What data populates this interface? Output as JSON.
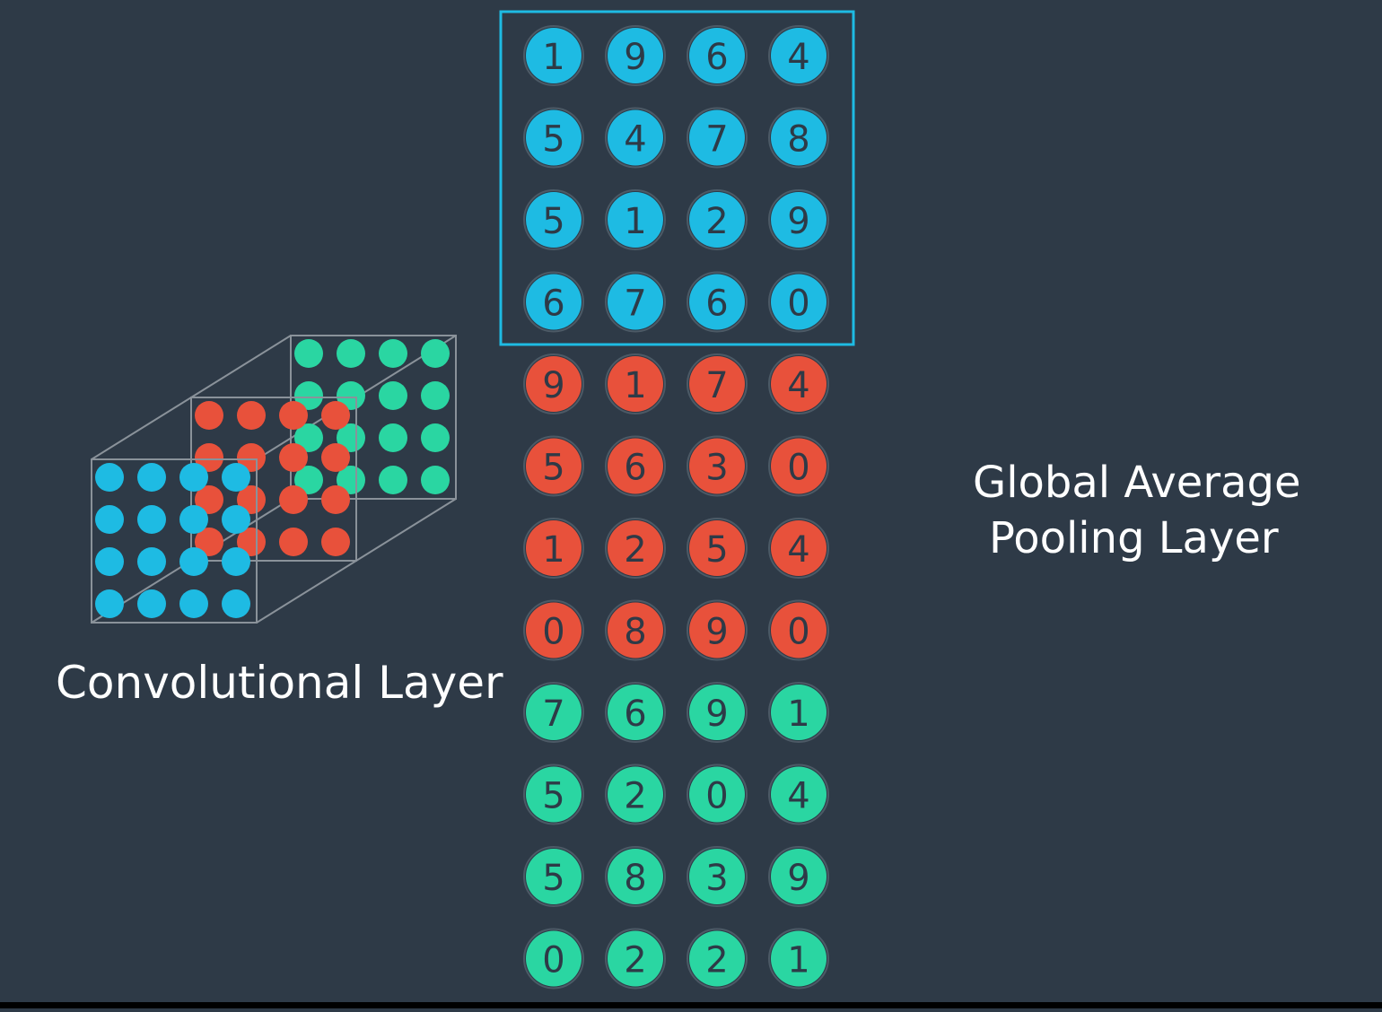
{
  "labels": {
    "conv_layer": "Convolutional Layer",
    "gap_line1": "Global Average",
    "gap_line2": "Pooling Layer"
  },
  "colors": {
    "background": "#2e3a47",
    "blue": "#1ebbe3",
    "red": "#e8513b",
    "green": "#2ad6a2",
    "digit_text": "#2e3a47",
    "highlight_box": "#1ebbe3",
    "cube_edge": "#8a929a"
  },
  "feature_maps": [
    {
      "name": "blue",
      "values": [
        [
          1,
          9,
          6,
          4
        ],
        [
          5,
          4,
          7,
          8
        ],
        [
          5,
          1,
          2,
          9
        ],
        [
          6,
          7,
          6,
          0
        ]
      ]
    },
    {
      "name": "red",
      "values": [
        [
          9,
          1,
          7,
          4
        ],
        [
          5,
          6,
          3,
          0
        ],
        [
          1,
          2,
          5,
          4
        ],
        [
          0,
          8,
          9,
          0
        ]
      ]
    },
    {
      "name": "green",
      "values": [
        [
          7,
          6,
          9,
          1
        ],
        [
          5,
          2,
          0,
          4
        ],
        [
          5,
          8,
          3,
          9
        ],
        [
          0,
          2,
          2,
          1
        ]
      ]
    }
  ]
}
